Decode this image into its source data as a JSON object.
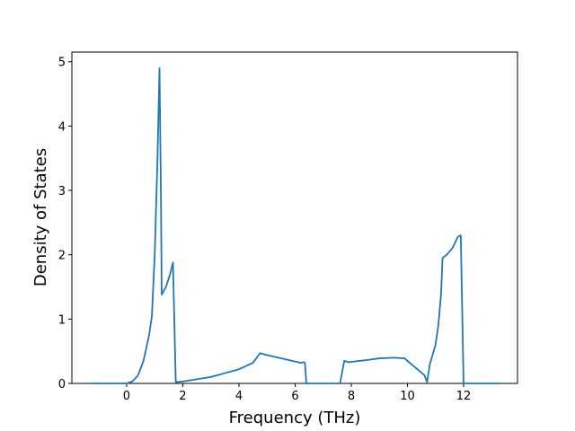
{
  "chart_data": {
    "type": "line",
    "x_label": "Frequency (THz)",
    "y_label": "Density of States",
    "x": [
      -1.25,
      0,
      0.2,
      0.4,
      0.6,
      0.8,
      0.9,
      1.0,
      1.1,
      1.17,
      1.22,
      1.25,
      1.4,
      1.55,
      1.65,
      1.75,
      2,
      3,
      4,
      4.5,
      4.75,
      5,
      5.5,
      6,
      6.2,
      6.3,
      6.35,
      6.4,
      7.6,
      7.75,
      7.9,
      8.5,
      9,
      9.5,
      9.9,
      10,
      10.3,
      10.6,
      10.7,
      10.8,
      11,
      11.1,
      11.2,
      11.25,
      11.4,
      11.6,
      11.8,
      11.9,
      12.0,
      13.25
    ],
    "series": [
      {
        "color": "#1f77b4",
        "values": [
          0,
          0,
          0.03,
          0.12,
          0.35,
          0.75,
          1.05,
          2.0,
          3.5,
          4.9,
          3.0,
          1.38,
          1.5,
          1.7,
          1.88,
          0.02,
          0.03,
          0.1,
          0.22,
          0.32,
          0.47,
          0.44,
          0.39,
          0.34,
          0.32,
          0.33,
          0.32,
          0,
          0,
          0.35,
          0.33,
          0.36,
          0.39,
          0.4,
          0.39,
          0.35,
          0.24,
          0.13,
          0.02,
          0.3,
          0.6,
          0.9,
          1.4,
          1.95,
          2.0,
          2.1,
          2.28,
          2.3,
          0,
          0
        ]
      }
    ],
    "xlim": [
      -1.95,
      13.92
    ],
    "xticks": [
      0,
      2,
      4,
      6,
      8,
      10,
      12
    ],
    "ylim": [
      0,
      5.15
    ],
    "yticks": [
      0,
      1,
      2,
      3,
      4,
      5
    ],
    "grid": false
  }
}
